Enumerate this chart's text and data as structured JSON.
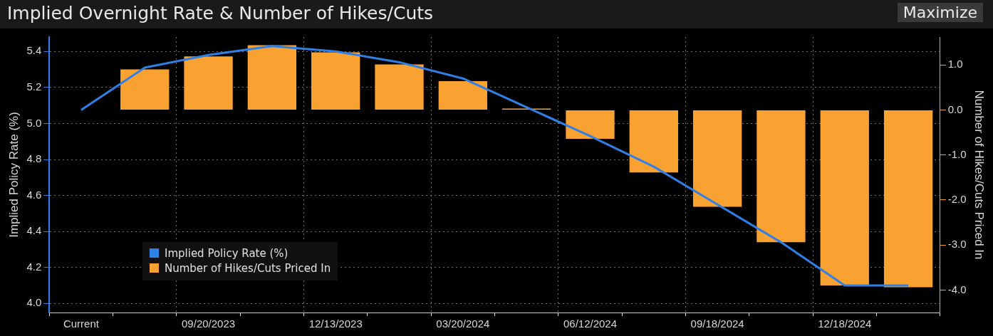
{
  "chart_data": {
    "type": "bar",
    "title": "Implied Overnight Rate & Number of Hikes/Cuts",
    "annotations": [
      "Maximize"
    ],
    "categories": [
      "Current",
      null,
      "09/20/2023",
      null,
      "12/13/2023",
      null,
      "03/20/2024",
      null,
      "06/12/2024",
      null,
      "09/18/2024",
      null,
      "12/18/2024",
      null
    ],
    "series": [
      {
        "name": "Implied Policy Rate (%)",
        "type": "line",
        "color": "#2f80e6",
        "values": [
          5.075,
          5.31,
          5.38,
          5.43,
          5.4,
          5.34,
          5.25,
          5.09,
          4.93,
          4.76,
          4.55,
          4.34,
          4.1,
          4.1
        ]
      },
      {
        "name": "Number of Hikes/Cuts Priced In",
        "axis": "y2",
        "color": "#f9a232",
        "values": [
          0.0,
          0.9,
          1.19,
          1.44,
          1.28,
          1.01,
          0.64,
          0.03,
          -0.64,
          -1.39,
          -2.15,
          -2.94,
          -3.9,
          -3.94
        ]
      }
    ],
    "ylabel": "Implied Policy Rate (%)",
    "y2label": "Number of Hikes/Cuts Priced In",
    "ylim": [
      3.95,
      5.48
    ],
    "yticks": [
      {
        "value": 4.0,
        "label": "4.0"
      },
      {
        "value": 4.2,
        "label": "4.2"
      },
      {
        "value": 4.4,
        "label": "4.4"
      },
      {
        "value": 4.6,
        "label": "4.6"
      },
      {
        "value": 4.8,
        "label": "4.8"
      },
      {
        "value": 5.0,
        "label": "5.0"
      },
      {
        "value": 5.2,
        "label": "5.2"
      },
      {
        "value": 5.4,
        "label": "5.4"
      }
    ],
    "y2lim": [
      -4.5,
      1.62
    ],
    "y2ticks": [
      {
        "value": -4,
        "label": "-4.0"
      },
      {
        "value": -3,
        "label": "-3.0"
      },
      {
        "value": -2,
        "label": "-2.0"
      },
      {
        "value": -1,
        "label": "-1.0"
      },
      {
        "value": 0,
        "label": "0.0"
      },
      {
        "value": 1,
        "label": "1.0"
      }
    ],
    "grid": true,
    "legend": "bottom left"
  }
}
